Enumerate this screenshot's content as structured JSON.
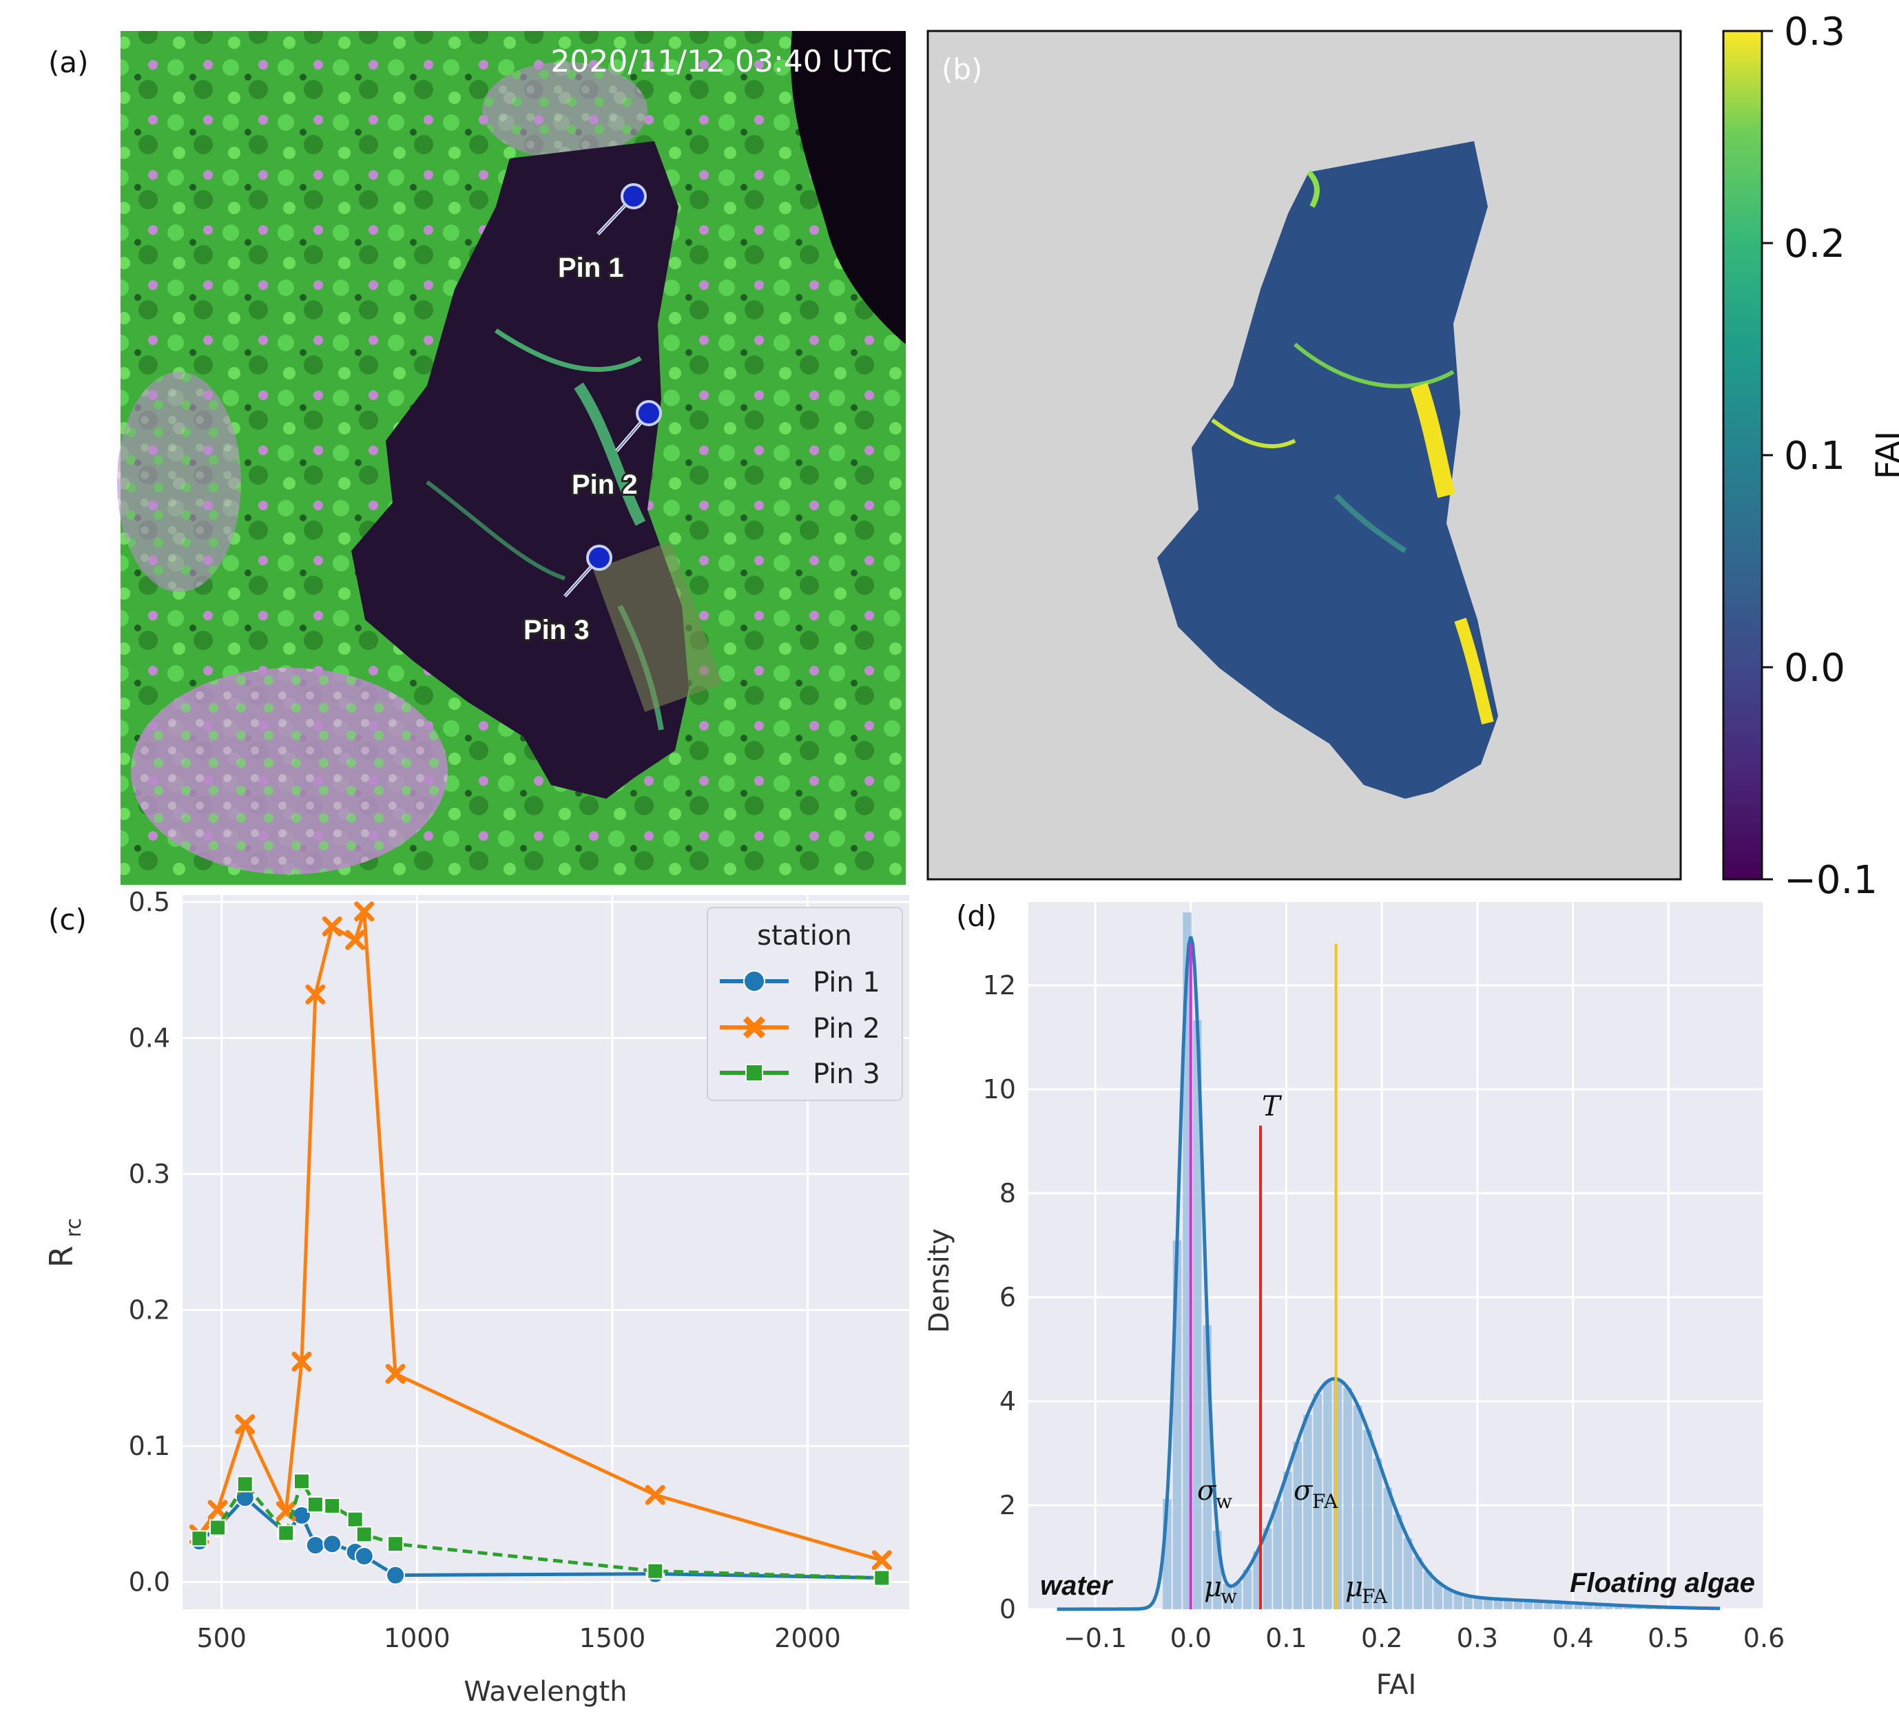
{
  "panels": {
    "a": {
      "letter": "(a)",
      "timestamp": "2020/11/12 03:40 UTC",
      "pins": [
        {
          "label": "Pin 1"
        },
        {
          "label": "Pin 2"
        },
        {
          "label": "Pin 3"
        }
      ]
    },
    "b": {
      "letter": "(b)",
      "colorbar": {
        "label": "FAI",
        "ticks": [
          "0.3",
          "0.2",
          "0.1",
          "0.0",
          "−0.1"
        ],
        "range": [
          -0.1,
          0.3
        ]
      }
    },
    "c": {
      "letter": "(c)"
    },
    "d": {
      "letter": "(d)"
    }
  },
  "colors": {
    "pin1": "#1f77b4",
    "pin2": "#ff7f0e",
    "pin3": "#2ca02c",
    "plot_bg": "#eaeaf2",
    "hist": "#9ec1de",
    "kde": "#2a7ab8",
    "mu_w_line": "#d62fd6",
    "threshold_line": "#e8231f",
    "mu_fa_line": "#f5c518"
  },
  "chart_data": [
    {
      "id": "c",
      "type": "line",
      "xlabel": "Wavelength",
      "ylabel_main": "R",
      "ylabel_sub": "rc",
      "xlim": [
        400,
        2260
      ],
      "ylim": [
        -0.02,
        0.505
      ],
      "xticks": [
        500,
        1000,
        1500,
        2000
      ],
      "yticks": [
        0.0,
        0.1,
        0.2,
        0.3,
        0.4,
        0.5
      ],
      "xtick_labels": [
        "500",
        "1000",
        "1500",
        "2000"
      ],
      "ytick_labels": [
        "0.0",
        "0.1",
        "0.2",
        "0.3",
        "0.4",
        "0.5"
      ],
      "legend": {
        "title": "station",
        "position": "top-right"
      },
      "series": [
        {
          "name": "Pin 1",
          "marker": "circle",
          "dash": false,
          "x": [
            443,
            490,
            560,
            665,
            705,
            740,
            783,
            842,
            865,
            945,
            1610,
            2190
          ],
          "y": [
            0.03,
            0.04,
            0.062,
            0.036,
            0.049,
            0.027,
            0.028,
            0.022,
            0.019,
            0.005,
            0.006,
            0.003
          ]
        },
        {
          "name": "Pin 2",
          "marker": "x",
          "dash": false,
          "x": [
            443,
            490,
            560,
            665,
            705,
            740,
            783,
            842,
            865,
            945,
            1610,
            2190
          ],
          "y": [
            0.035,
            0.053,
            0.116,
            0.052,
            0.162,
            0.432,
            0.482,
            0.472,
            0.493,
            0.153,
            0.064,
            0.016
          ]
        },
        {
          "name": "Pin 3",
          "marker": "square",
          "dash": true,
          "x": [
            443,
            490,
            560,
            665,
            705,
            740,
            783,
            842,
            865,
            945,
            1610,
            2190
          ],
          "y": [
            0.032,
            0.04,
            0.072,
            0.036,
            0.074,
            0.057,
            0.056,
            0.046,
            0.035,
            0.028,
            0.008,
            0.003
          ]
        }
      ]
    },
    {
      "id": "d",
      "type": "histogram+kde",
      "xlabel": "FAI",
      "ylabel": "Density",
      "xlim": [
        -0.17,
        0.6
      ],
      "ylim": [
        0,
        13.6
      ],
      "xticks": [
        -0.1,
        0.0,
        0.1,
        0.2,
        0.3,
        0.4,
        0.5,
        0.6
      ],
      "xtick_labels": [
        "−0.1",
        "0.0",
        "0.1",
        "0.2",
        "0.3",
        "0.4",
        "0.5",
        "0.6"
      ],
      "yticks": [
        0,
        2,
        4,
        6,
        8,
        10,
        12
      ],
      "ytick_labels": [
        "0",
        "2",
        "4",
        "6",
        "8",
        "10",
        "12"
      ],
      "kde_components": [
        {
          "mean": 0.0,
          "sd": 0.013,
          "weight": 0.42
        },
        {
          "mean": 0.15,
          "sd": 0.048,
          "weight": 0.52
        },
        {
          "mean": 0.28,
          "sd": 0.12,
          "weight": 0.06
        }
      ],
      "vlines": [
        {
          "name": "mu_w",
          "x": 0.0,
          "top": 12.8
        },
        {
          "name": "T",
          "x": 0.073,
          "top": 9.3
        },
        {
          "name": "mu_FA",
          "x": 0.152,
          "top": 12.8
        }
      ],
      "annotations": {
        "threshold": "T",
        "sigma_w": "σ",
        "sigma_w_sub": "w",
        "sigma_fa": "σ",
        "sigma_fa_sub": "FA",
        "mu_w": "μ",
        "mu_w_sub": "w",
        "mu_fa": "μ",
        "mu_fa_sub": "FA",
        "left_class": "water",
        "right_class": "Floating algae"
      }
    }
  ]
}
